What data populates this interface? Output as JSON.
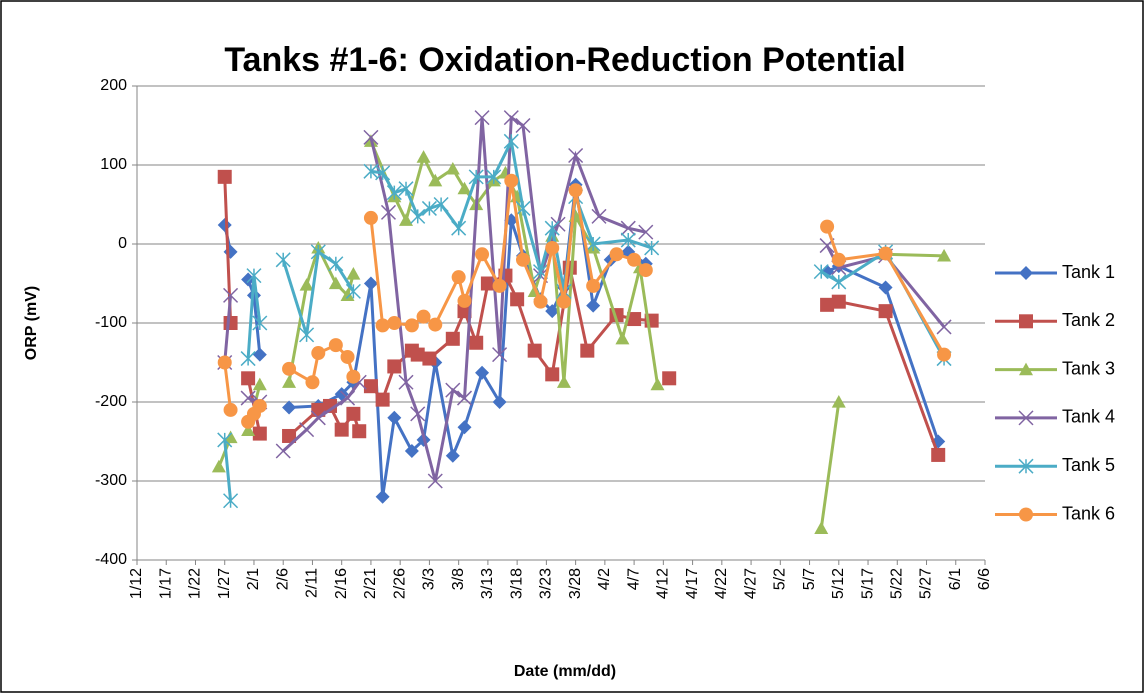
{
  "chart_data": {
    "type": "line",
    "title": "Tanks #1-6: Oxidation-Reduction Potential",
    "x_label": "Date (mm/dd)",
    "y_label": "ORP (mV)",
    "xlim": [
      "1/12",
      "6/6"
    ],
    "xticks": [
      "1/12",
      "1/17",
      "1/22",
      "1/27",
      "2/1",
      "2/6",
      "2/11",
      "2/16",
      "2/21",
      "2/26",
      "3/3",
      "3/8",
      "3/13",
      "3/18",
      "3/23",
      "3/28",
      "4/2",
      "4/7",
      "4/12",
      "4/17",
      "4/22",
      "4/27",
      "5/2",
      "5/7",
      "5/12",
      "5/17",
      "5/22",
      "5/27",
      "6/1",
      "6/6"
    ],
    "ylim": [
      -400,
      200
    ],
    "yticks": [
      -400,
      -300,
      -200,
      -100,
      0,
      100,
      200
    ],
    "grid": true,
    "legend": "right",
    "series": [
      {
        "name": "Tank 1",
        "color": "#4472c4",
        "marker": "diamond",
        "x": [
          "1/27",
          "1/28",
          null,
          "1/31",
          "2/1",
          "2/2",
          null,
          "2/7",
          "2/12",
          "2/16",
          "2/18",
          "2/21",
          "2/23",
          "2/25",
          "2/28",
          "3/2",
          "3/4",
          "3/7",
          "3/9",
          "3/12",
          "3/15",
          "3/17",
          "3/19",
          "3/22",
          "3/24",
          "3/26",
          "3/28",
          "3/31",
          "4/3",
          "4/6",
          "4/9",
          null,
          "5/10",
          "5/12",
          "5/20",
          "5/29"
        ],
        "values": [
          24,
          -10,
          null,
          -45,
          -65,
          -140,
          null,
          -207,
          -205,
          -190,
          -175,
          -50,
          -320,
          -220,
          -262,
          -248,
          -150,
          -268,
          -232,
          -163,
          -200,
          30,
          -15,
          -70,
          -85,
          -55,
          75,
          -78,
          -20,
          -10,
          -25,
          null,
          -35,
          -28,
          -55,
          -250
        ]
      },
      {
        "name": "Tank 2",
        "color": "#c0504d",
        "marker": "square",
        "x": [
          "1/27",
          "1/28",
          null,
          "1/31",
          "2/2",
          null,
          "2/7",
          "2/12",
          "2/14",
          "2/16",
          "2/18",
          "2/19",
          null,
          "2/21",
          "2/23",
          "2/25",
          "2/28",
          "3/1",
          "3/3",
          "3/7",
          "3/9",
          "3/11",
          "3/13",
          "3/16",
          "3/18",
          "3/21",
          "3/24",
          "3/27",
          "3/30",
          "4/4",
          "4/7",
          "4/10",
          null,
          "4/13",
          null,
          "5/10",
          "5/12",
          "5/20",
          "5/29"
        ],
        "values": [
          85,
          -100,
          null,
          -170,
          -240,
          null,
          -243,
          -210,
          -205,
          -235,
          -215,
          -237,
          null,
          -180,
          -197,
          -155,
          -135,
          -140,
          -145,
          -120,
          -85,
          -125,
          -50,
          -40,
          -70,
          -135,
          -165,
          -30,
          -135,
          -90,
          -95,
          -97,
          null,
          -170,
          null,
          -77,
          -73,
          -85,
          -267
        ]
      },
      {
        "name": "Tank 3",
        "color": "#9bbb59",
        "marker": "triangle",
        "x": [
          "1/26",
          "1/28",
          null,
          "1/31",
          "2/2",
          null,
          "2/7",
          "2/10",
          "2/12",
          "2/15",
          "2/17",
          "2/18",
          null,
          "2/21",
          "2/25",
          "2/27",
          "3/2",
          "3/4",
          "3/7",
          "3/9",
          "3/11",
          "3/14",
          "3/16",
          "3/18",
          "3/21",
          "3/24",
          "3/26",
          "3/28",
          "3/31",
          "4/5",
          "4/8",
          "4/11",
          null,
          "5/9",
          "5/12",
          null,
          "5/20",
          "5/30"
        ],
        "values": [
          -282,
          -245,
          null,
          -236,
          -178,
          null,
          -175,
          -52,
          -5,
          -50,
          -65,
          -38,
          null,
          130,
          60,
          30,
          110,
          80,
          95,
          70,
          50,
          80,
          90,
          60,
          -60,
          10,
          -175,
          35,
          -5,
          -120,
          -30,
          -178,
          null,
          -360,
          -200,
          null,
          -13,
          -15
        ]
      },
      {
        "name": "Tank 4",
        "color": "#8064a2",
        "marker": "x",
        "x": [
          "1/27",
          "1/28",
          null,
          "1/31",
          "2/2",
          null,
          "2/6",
          "2/10",
          "2/12",
          "2/17",
          "2/19",
          null,
          "2/21",
          "2/24",
          "2/27",
          "3/1",
          "3/4",
          "3/7",
          "3/9",
          "3/12",
          "3/15",
          "3/17",
          "3/19",
          "3/22",
          "3/25",
          "3/28",
          "4/1",
          "4/6",
          "4/9",
          null,
          "5/10",
          "5/12",
          "5/20",
          "5/30"
        ],
        "values": [
          -150,
          -65,
          null,
          -195,
          -200,
          null,
          -262,
          -235,
          -220,
          -195,
          -175,
          null,
          135,
          40,
          -175,
          -215,
          -300,
          -185,
          -195,
          160,
          -140,
          160,
          150,
          -40,
          25,
          112,
          35,
          20,
          15,
          null,
          -2,
          -30,
          -15,
          -105
        ]
      },
      {
        "name": "Tank 5",
        "color": "#4bacc6",
        "marker": "star",
        "x": [
          "1/27",
          "1/28",
          null,
          "1/31",
          "2/1",
          "2/2",
          null,
          "2/6",
          "2/10",
          "2/12",
          "2/15",
          "2/18",
          null,
          "2/21",
          "2/23",
          "2/25",
          "2/27",
          "3/1",
          "3/3",
          "3/5",
          "3/8",
          "3/11",
          "3/14",
          "3/17",
          "3/19",
          "3/22",
          "3/24",
          "3/26",
          "3/28",
          "3/31",
          "4/6",
          "4/10",
          null,
          "5/9",
          "5/12",
          "5/20",
          "5/30"
        ],
        "values": [
          -248,
          -325,
          null,
          -145,
          -40,
          -100,
          null,
          -20,
          -115,
          -10,
          -25,
          -60,
          null,
          92,
          90,
          65,
          70,
          35,
          45,
          50,
          20,
          85,
          85,
          130,
          45,
          -35,
          20,
          -60,
          60,
          0,
          5,
          -5,
          null,
          -35,
          -48,
          -10,
          -145
        ]
      },
      {
        "name": "Tank 6",
        "color": "#f79646",
        "marker": "circle",
        "x": [
          "1/27",
          "1/28",
          null,
          "1/31",
          "2/1",
          "2/2",
          null,
          "2/7",
          "2/11",
          "2/12",
          "2/15",
          "2/17",
          "2/18",
          null,
          "2/21",
          "2/23",
          "2/25",
          "2/28",
          "3/2",
          "3/4",
          "3/8",
          "3/9",
          "3/12",
          "3/15",
          "3/17",
          "3/19",
          "3/22",
          "3/24",
          "3/26",
          "3/28",
          "3/31",
          "4/4",
          "4/7",
          "4/9",
          null,
          "5/10",
          "5/12",
          "5/20",
          "5/30"
        ],
        "values": [
          -150,
          -210,
          null,
          -225,
          -215,
          -205,
          null,
          -158,
          -175,
          -138,
          -128,
          -143,
          -168,
          null,
          33,
          -103,
          -100,
          -103,
          -92,
          -102,
          -42,
          -72,
          -13,
          -53,
          80,
          -20,
          -73,
          -5,
          -73,
          68,
          -53,
          -13,
          -20,
          -33,
          null,
          22,
          -20,
          -12,
          -140
        ]
      }
    ]
  }
}
